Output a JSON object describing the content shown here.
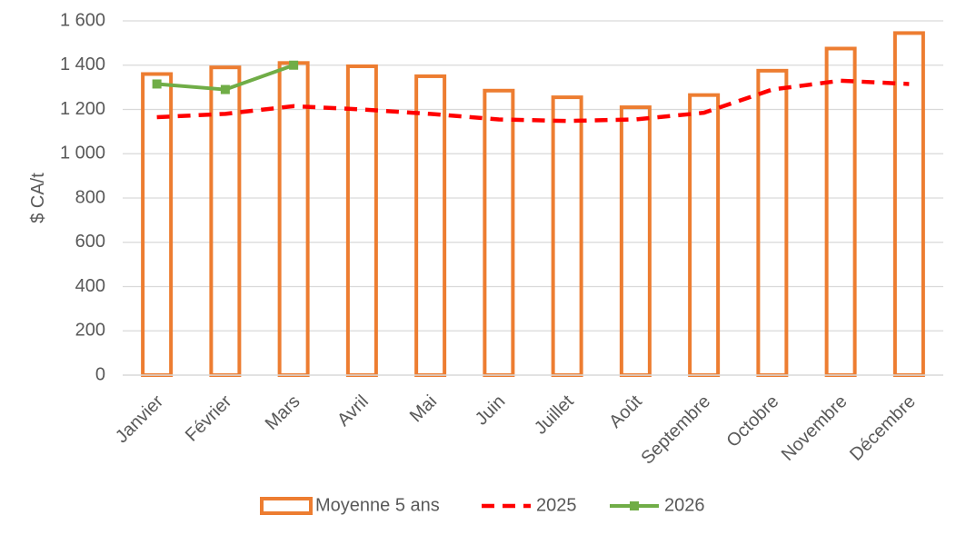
{
  "chart_data": {
    "type": "bar",
    "categories": [
      "Janvier",
      "Février",
      "Mars",
      "Avril",
      "Mai",
      "Juin",
      "Juillet",
      "Août",
      "Septembre",
      "Octobre",
      "Novembre",
      "Décembre"
    ],
    "ylabel": "$ CA/t",
    "xlabel": "",
    "ylim": [
      0,
      1600
    ],
    "yticks": [
      0,
      200,
      400,
      600,
      800,
      1000,
      1200,
      1400,
      1600
    ],
    "ytick_labels": [
      "0",
      "200",
      "400",
      "600",
      "800",
      "1 000",
      "1 200",
      "1 400",
      "1 600"
    ],
    "grid": true,
    "legend_position": "bottom",
    "series": [
      {
        "name": "Moyenne 5 ans",
        "kind": "bar",
        "style": "hollow",
        "color": "#ED7D31",
        "values": [
          1360,
          1390,
          1410,
          1395,
          1350,
          1285,
          1255,
          1210,
          1265,
          1375,
          1475,
          1545
        ]
      },
      {
        "name": "2025",
        "kind": "line",
        "style": "dashed",
        "color": "#FF0000",
        "values": [
          1165,
          1180,
          1215,
          1200,
          1180,
          1155,
          1148,
          1155,
          1185,
          1290,
          1330,
          1315
        ]
      },
      {
        "name": "2026",
        "kind": "line",
        "style": "solid-marker",
        "color": "#70AD47",
        "values": [
          1315,
          1290,
          1400,
          null,
          null,
          null,
          null,
          null,
          null,
          null,
          null,
          null
        ]
      }
    ]
  }
}
